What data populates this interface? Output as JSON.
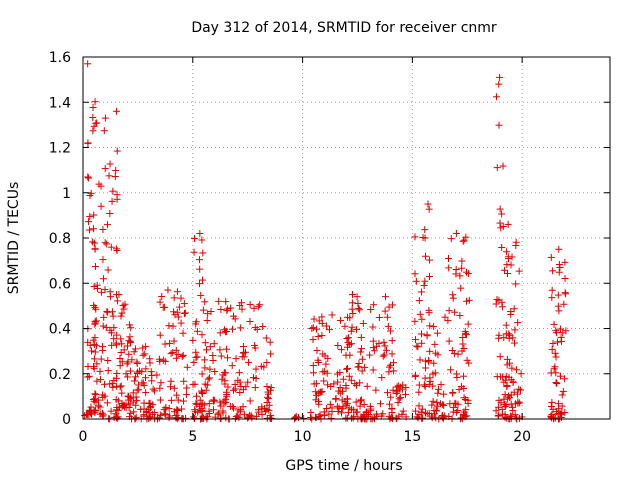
{
  "chart_data": {
    "type": "scatter",
    "title": "Day 312 of 2014, SRMTID for receiver cnmr",
    "xlabel": "GPS time / hours",
    "ylabel": "SRMTID / TECUs",
    "xlim": [
      0,
      24
    ],
    "ylim": [
      0,
      1.6
    ],
    "xticks": [
      0,
      5,
      10,
      15,
      20
    ],
    "yticks": [
      0,
      0.2,
      0.4,
      0.6,
      0.8,
      1,
      1.2,
      1.4,
      1.6
    ],
    "ytick_labels": [
      "0",
      "0.2",
      "0.4",
      "0.6",
      "0.8",
      "1",
      "1.2",
      "1.4",
      "1.6"
    ],
    "grid": true,
    "marker": "plus",
    "color": "#e00000",
    "clusters": [
      {
        "x_range": [
          0.05,
          0.4
        ],
        "y_range": [
          0.0,
          0.02
        ],
        "count": 2
      },
      {
        "x_range": [
          0.2,
          0.6
        ],
        "y_range": [
          0.02,
          1.57
        ],
        "count": 55
      },
      {
        "x_range": [
          0.5,
          1.6
        ],
        "y_range": [
          0.0,
          1.36
        ],
        "count": 95
      },
      {
        "x_range": [
          1.5,
          2.2
        ],
        "y_range": [
          0.05,
          0.55
        ],
        "count": 45
      },
      {
        "x_range": [
          2.0,
          3.5
        ],
        "y_range": [
          0.0,
          0.32
        ],
        "count": 80
      },
      {
        "x_range": [
          3.5,
          4.8
        ],
        "y_range": [
          0.0,
          0.57
        ],
        "count": 70
      },
      {
        "x_range": [
          5.0,
          5.5
        ],
        "y_range": [
          0.0,
          0.82
        ],
        "count": 40
      },
      {
        "x_range": [
          5.4,
          8.6
        ],
        "y_range": [
          0.0,
          0.52
        ],
        "count": 170
      },
      {
        "x_range": [
          9.6,
          10.2
        ],
        "y_range": [
          0.0,
          0.01
        ],
        "count": 6
      },
      {
        "x_range": [
          10.2,
          12.2
        ],
        "y_range": [
          0.0,
          0.46
        ],
        "count": 100
      },
      {
        "x_range": [
          12.2,
          14.2
        ],
        "y_range": [
          0.0,
          0.55
        ],
        "count": 110
      },
      {
        "x_range": [
          14.2,
          14.8
        ],
        "y_range": [
          0.0,
          0.15
        ],
        "count": 20
      },
      {
        "x_range": [
          15.1,
          15.8
        ],
        "y_range": [
          0.0,
          0.95
        ],
        "count": 55
      },
      {
        "x_range": [
          15.8,
          16.5
        ],
        "y_range": [
          0.0,
          0.45
        ],
        "count": 35
      },
      {
        "x_range": [
          16.6,
          17.6
        ],
        "y_range": [
          0.0,
          0.82
        ],
        "count": 70
      },
      {
        "x_range": [
          18.8,
          19.2
        ],
        "y_range": [
          0.0,
          1.51
        ],
        "count": 35
      },
      {
        "x_range": [
          19.2,
          20.0
        ],
        "y_range": [
          0.0,
          0.86
        ],
        "count": 70
      },
      {
        "x_range": [
          21.0,
          21.4
        ],
        "y_range": [
          0.0,
          0.02
        ],
        "count": 3
      },
      {
        "x_range": [
          21.3,
          22.0
        ],
        "y_range": [
          0.0,
          0.75
        ],
        "count": 60
      }
    ]
  }
}
